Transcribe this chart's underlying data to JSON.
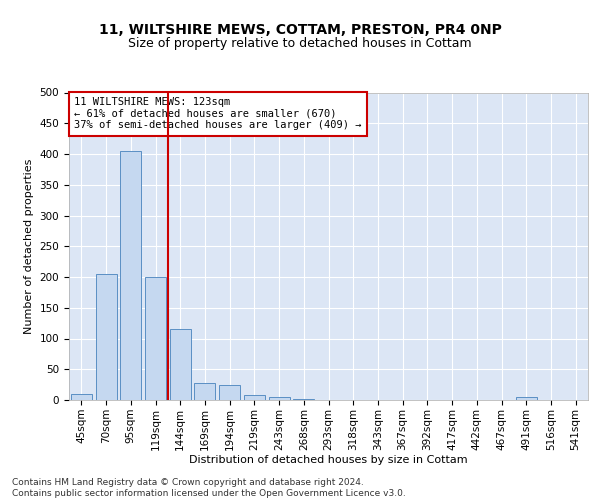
{
  "title1": "11, WILTSHIRE MEWS, COTTAM, PRESTON, PR4 0NP",
  "title2": "Size of property relative to detached houses in Cottam",
  "xlabel": "Distribution of detached houses by size in Cottam",
  "ylabel": "Number of detached properties",
  "categories": [
    "45sqm",
    "70sqm",
    "95sqm",
    "119sqm",
    "144sqm",
    "169sqm",
    "194sqm",
    "219sqm",
    "243sqm",
    "268sqm",
    "293sqm",
    "318sqm",
    "343sqm",
    "367sqm",
    "392sqm",
    "417sqm",
    "442sqm",
    "467sqm",
    "491sqm",
    "516sqm",
    "541sqm"
  ],
  "values": [
    10,
    205,
    405,
    200,
    115,
    28,
    25,
    8,
    5,
    2,
    0,
    0,
    0,
    0,
    0,
    0,
    0,
    0,
    5,
    0,
    0
  ],
  "bar_color": "#c5d8f0",
  "bar_edge_color": "#5a8fc4",
  "vline_x": 3.5,
  "vline_color": "#cc0000",
  "annotation_text": "11 WILTSHIRE MEWS: 123sqm\n← 61% of detached houses are smaller (670)\n37% of semi-detached houses are larger (409) →",
  "annotation_box_color": "#ffffff",
  "annotation_box_edge": "#cc0000",
  "ylim": [
    0,
    500
  ],
  "yticks": [
    0,
    50,
    100,
    150,
    200,
    250,
    300,
    350,
    400,
    450,
    500
  ],
  "background_color": "#dce6f5",
  "footer_text": "Contains HM Land Registry data © Crown copyright and database right 2024.\nContains public sector information licensed under the Open Government Licence v3.0.",
  "title_fontsize": 10,
  "subtitle_fontsize": 9,
  "axis_fontsize": 8,
  "tick_fontsize": 7.5,
  "footer_fontsize": 6.5
}
